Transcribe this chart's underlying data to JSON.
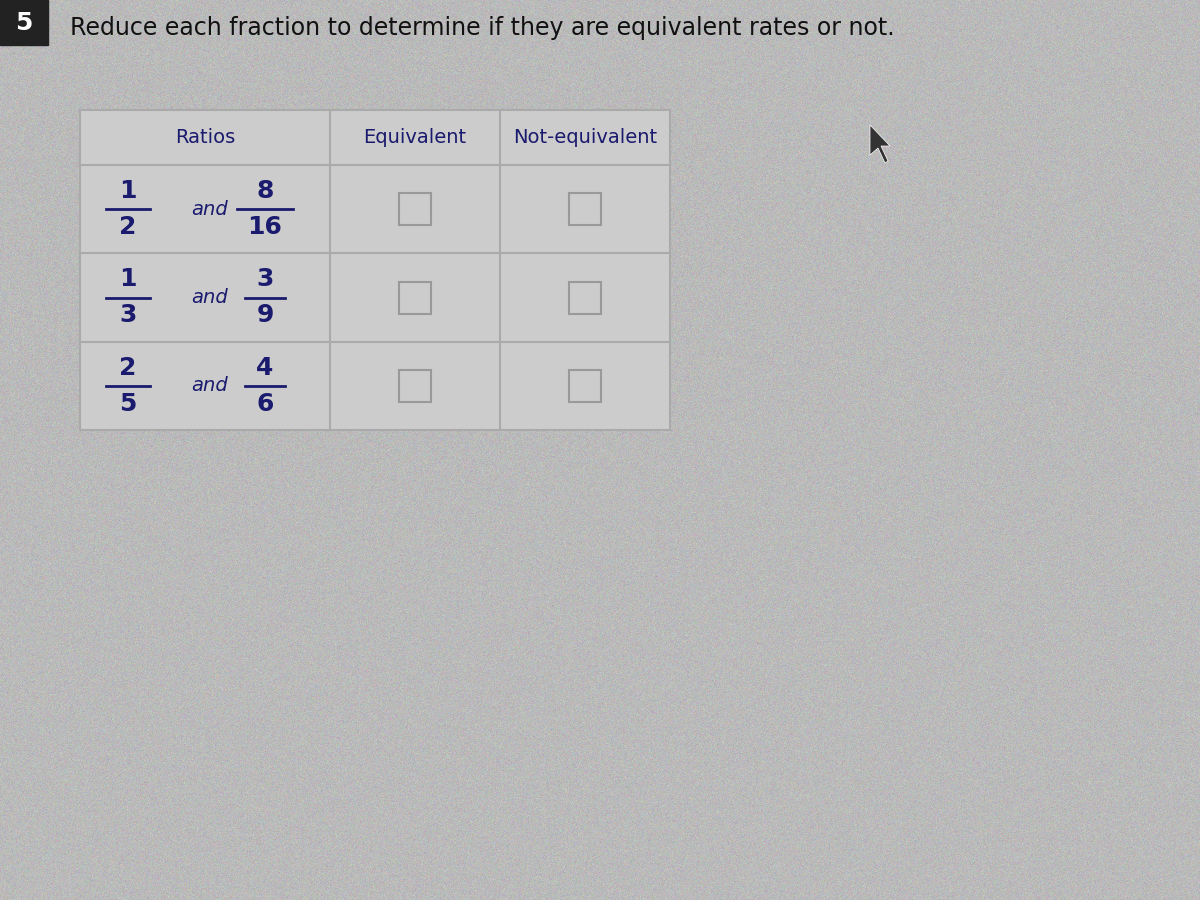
{
  "title": "Reduce each fraction to determine if they are equivalent rates or not.",
  "page_num": "5",
  "bg_color": "#b8b8b8",
  "col_headers": [
    "Ratios",
    "Equivalent",
    "Not-equivalent"
  ],
  "ratios": [
    [
      "1",
      "2",
      "8",
      "16"
    ],
    [
      "1",
      "3",
      "3",
      "9"
    ],
    [
      "2",
      "5",
      "4",
      "6"
    ]
  ],
  "title_fontsize": 17,
  "header_fontsize": 14,
  "ratio_fontsize": 16,
  "text_color": "#1a1a6e",
  "title_color": "#111111",
  "line_color": "#888888",
  "table_line_color": "#aaaaaa",
  "checkbox_bg": "#cccccc",
  "checkbox_edge": "#999999",
  "table_bg": "#cccccc"
}
